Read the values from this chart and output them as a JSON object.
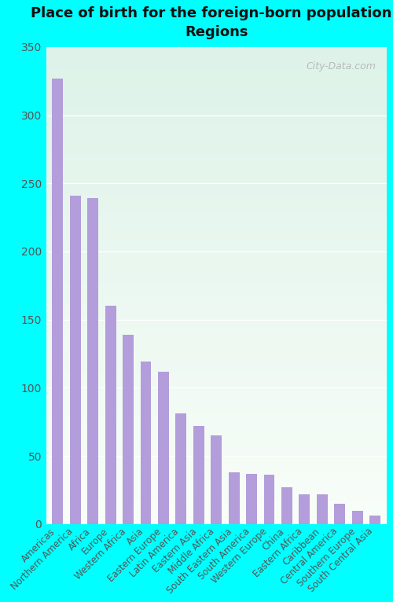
{
  "title": "Place of birth for the foreign-born population -\nRegions",
  "categories": [
    "Americas",
    "Northern America",
    "Africa",
    "Europe",
    "Western Africa",
    "Asia",
    "Eastern Europe",
    "Latin America",
    "Eastern Asia",
    "Middle Africa",
    "South Eastern Asia",
    "South America",
    "Western Europe",
    "China",
    "Eastern Africa",
    "Caribbean",
    "Central America",
    "Southern Europe",
    "South Central Asia"
  ],
  "values": [
    327,
    241,
    239,
    160,
    139,
    119,
    112,
    81,
    72,
    65,
    38,
    37,
    36,
    27,
    22,
    22,
    15,
    10,
    6
  ],
  "bar_color": "#b39ddb",
  "outer_bg": "#00ffff",
  "plot_bg_top": "#f8fdf8",
  "plot_bg_bottom": "#ddf2e8",
  "title_color": "#111111",
  "title_fontsize": 13,
  "tick_fontsize": 8.5,
  "ytick_fontsize": 10,
  "ylim": [
    0,
    350
  ],
  "yticks": [
    0,
    50,
    100,
    150,
    200,
    250,
    300,
    350
  ],
  "watermark": "City-Data.com",
  "watermark_color": "#aaaaaa",
  "grid_color": "#e0e0e0",
  "label_color": "#555555"
}
